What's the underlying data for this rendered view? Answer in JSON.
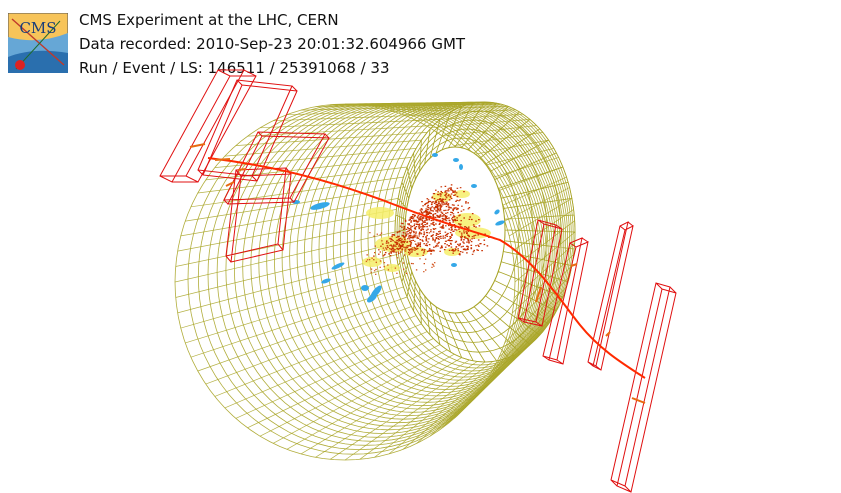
{
  "header": {
    "line1": "CMS Experiment at the LHC, CERN",
    "line2": "Data recorded: 2010-Sep-23 20:01:32.604966 GMT",
    "line3": "Run / Event / LS: 146511 / 25391068 / 33"
  },
  "logo": {
    "text": "CMS"
  },
  "colors": {
    "detector_mesh": "#a8a426",
    "muon_chambers": "#e01010",
    "muon_track": "#ff2a00",
    "hcal_hits": "#35a8e8",
    "ecal_energy": "#f6ee6a",
    "tracker_hits": "#c83000"
  }
}
